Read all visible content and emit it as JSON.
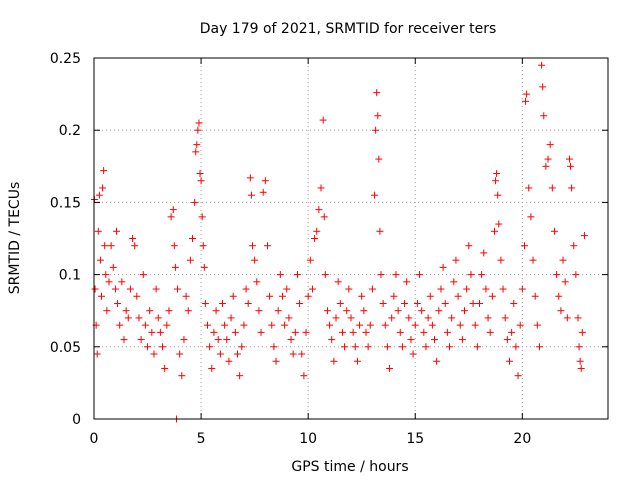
{
  "chart_data": {
    "type": "scatter",
    "title": "Day 179 of 2021, SRMTID for receiver ters",
    "xlabel": "GPS time / hours",
    "ylabel": "SRMTID / TECUs",
    "xlim": [
      0,
      24
    ],
    "ylim": [
      0,
      0.25
    ],
    "xticks": [
      0,
      5,
      10,
      15,
      20
    ],
    "xtick_labels": [
      "0",
      "5",
      "10",
      "15",
      "20"
    ],
    "yticks": [
      0,
      0.05,
      0.1,
      0.15,
      0.2,
      0.25
    ],
    "ytick_labels": [
      "0",
      "0.05",
      "0.1",
      "0.15",
      "0.2",
      "0.25"
    ],
    "grid": true,
    "legend": "none",
    "marker": "plus",
    "color": "#ff0000",
    "series": [
      {
        "points": [
          [
            0.02,
            0.152
          ],
          [
            0.05,
            0.09
          ],
          [
            0.1,
            0.065
          ],
          [
            0.15,
            0.045
          ],
          [
            0.2,
            0.13
          ],
          [
            0.25,
            0.155
          ],
          [
            0.3,
            0.11
          ],
          [
            0.35,
            0.085
          ],
          [
            0.4,
            0.16
          ],
          [
            0.45,
            0.172
          ],
          [
            0.5,
            0.12
          ],
          [
            0.55,
            0.1
          ],
          [
            0.6,
            0.075
          ],
          [
            0.7,
            0.095
          ],
          [
            0.8,
            0.12
          ],
          [
            0.9,
            0.105
          ],
          [
            1.0,
            0.09
          ],
          [
            1.05,
            0.13
          ],
          [
            1.1,
            0.08
          ],
          [
            1.2,
            0.065
          ],
          [
            1.3,
            0.095
          ],
          [
            1.4,
            0.055
          ],
          [
            1.5,
            0.075
          ],
          [
            1.6,
            0.07
          ],
          [
            1.7,
            0.09
          ],
          [
            1.8,
            0.125
          ],
          [
            1.9,
            0.12
          ],
          [
            2.0,
            0.085
          ],
          [
            2.1,
            0.07
          ],
          [
            2.2,
            0.055
          ],
          [
            2.3,
            0.1
          ],
          [
            2.4,
            0.065
          ],
          [
            2.5,
            0.05
          ],
          [
            2.6,
            0.075
          ],
          [
            2.7,
            0.06
          ],
          [
            2.8,
            0.045
          ],
          [
            2.9,
            0.09
          ],
          [
            3.0,
            0.07
          ],
          [
            3.1,
            0.06
          ],
          [
            3.2,
            0.05
          ],
          [
            3.3,
            0.035
          ],
          [
            3.4,
            0.065
          ],
          [
            3.5,
            0.075
          ],
          [
            3.6,
            0.14
          ],
          [
            3.7,
            0.145
          ],
          [
            3.75,
            0.12
          ],
          [
            3.8,
            0.105
          ],
          [
            3.85,
            0.0
          ],
          [
            3.9,
            0.09
          ],
          [
            4.0,
            0.045
          ],
          [
            4.1,
            0.03
          ],
          [
            4.2,
            0.055
          ],
          [
            4.3,
            0.085
          ],
          [
            4.4,
            0.075
          ],
          [
            4.5,
            0.11
          ],
          [
            4.6,
            0.125
          ],
          [
            4.7,
            0.15
          ],
          [
            4.75,
            0.185
          ],
          [
            4.8,
            0.19
          ],
          [
            4.85,
            0.2
          ],
          [
            4.9,
            0.205
          ],
          [
            4.95,
            0.17
          ],
          [
            5.0,
            0.165
          ],
          [
            5.05,
            0.14
          ],
          [
            5.1,
            0.12
          ],
          [
            5.15,
            0.105
          ],
          [
            5.2,
            0.08
          ],
          [
            5.3,
            0.065
          ],
          [
            5.4,
            0.05
          ],
          [
            5.5,
            0.035
          ],
          [
            5.6,
            0.06
          ],
          [
            5.7,
            0.075
          ],
          [
            5.8,
            0.055
          ],
          [
            5.9,
            0.045
          ],
          [
            6.0,
            0.08
          ],
          [
            6.1,
            0.065
          ],
          [
            6.2,
            0.055
          ],
          [
            6.3,
            0.04
          ],
          [
            6.4,
            0.07
          ],
          [
            6.5,
            0.085
          ],
          [
            6.6,
            0.06
          ],
          [
            6.7,
            0.045
          ],
          [
            6.8,
            0.03
          ],
          [
            6.9,
            0.05
          ],
          [
            7.0,
            0.065
          ],
          [
            7.1,
            0.09
          ],
          [
            7.2,
            0.08
          ],
          [
            7.3,
            0.167
          ],
          [
            7.35,
            0.155
          ],
          [
            7.4,
            0.12
          ],
          [
            7.5,
            0.11
          ],
          [
            7.6,
            0.095
          ],
          [
            7.7,
            0.075
          ],
          [
            7.8,
            0.06
          ],
          [
            7.9,
            0.157
          ],
          [
            8.0,
            0.165
          ],
          [
            8.1,
            0.12
          ],
          [
            8.2,
            0.085
          ],
          [
            8.3,
            0.065
          ],
          [
            8.4,
            0.05
          ],
          [
            8.5,
            0.04
          ],
          [
            8.6,
            0.075
          ],
          [
            8.7,
            0.1
          ],
          [
            8.8,
            0.085
          ],
          [
            8.9,
            0.065
          ],
          [
            9.0,
            0.09
          ],
          [
            9.1,
            0.07
          ],
          [
            9.2,
            0.055
          ],
          [
            9.3,
            0.045
          ],
          [
            9.4,
            0.06
          ],
          [
            9.5,
            0.1
          ],
          [
            9.6,
            0.08
          ],
          [
            9.7,
            0.045
          ],
          [
            9.8,
            0.03
          ],
          [
            9.9,
            0.06
          ],
          [
            10.0,
            0.085
          ],
          [
            10.1,
            0.11
          ],
          [
            10.2,
            0.09
          ],
          [
            10.3,
            0.125
          ],
          [
            10.4,
            0.13
          ],
          [
            10.5,
            0.145
          ],
          [
            10.6,
            0.16
          ],
          [
            10.7,
            0.207
          ],
          [
            10.75,
            0.14
          ],
          [
            10.8,
            0.1
          ],
          [
            10.9,
            0.075
          ],
          [
            11.0,
            0.065
          ],
          [
            11.1,
            0.055
          ],
          [
            11.2,
            0.04
          ],
          [
            11.3,
            0.07
          ],
          [
            11.4,
            0.095
          ],
          [
            11.5,
            0.08
          ],
          [
            11.6,
            0.06
          ],
          [
            11.7,
            0.05
          ],
          [
            11.8,
            0.075
          ],
          [
            11.9,
            0.09
          ],
          [
            12.0,
            0.07
          ],
          [
            12.1,
            0.06
          ],
          [
            12.2,
            0.05
          ],
          [
            12.3,
            0.04
          ],
          [
            12.4,
            0.065
          ],
          [
            12.5,
            0.085
          ],
          [
            12.6,
            0.075
          ],
          [
            12.7,
            0.06
          ],
          [
            12.8,
            0.05
          ],
          [
            12.9,
            0.065
          ],
          [
            13.0,
            0.09
          ],
          [
            13.1,
            0.155
          ],
          [
            13.15,
            0.2
          ],
          [
            13.2,
            0.226
          ],
          [
            13.25,
            0.21
          ],
          [
            13.3,
            0.18
          ],
          [
            13.35,
            0.13
          ],
          [
            13.4,
            0.1
          ],
          [
            13.5,
            0.08
          ],
          [
            13.6,
            0.065
          ],
          [
            13.7,
            0.05
          ],
          [
            13.8,
            0.035
          ],
          [
            13.9,
            0.07
          ],
          [
            14.0,
            0.085
          ],
          [
            14.1,
            0.1
          ],
          [
            14.2,
            0.075
          ],
          [
            14.3,
            0.06
          ],
          [
            14.4,
            0.05
          ],
          [
            14.5,
            0.08
          ],
          [
            14.6,
            0.095
          ],
          [
            14.7,
            0.07
          ],
          [
            14.8,
            0.055
          ],
          [
            14.9,
            0.045
          ],
          [
            15.0,
            0.065
          ],
          [
            15.1,
            0.08
          ],
          [
            15.2,
            0.1
          ],
          [
            15.3,
            0.075
          ],
          [
            15.4,
            0.06
          ],
          [
            15.5,
            0.05
          ],
          [
            15.6,
            0.07
          ],
          [
            15.7,
            0.085
          ],
          [
            15.8,
            0.065
          ],
          [
            15.9,
            0.055
          ],
          [
            16.0,
            0.04
          ],
          [
            16.1,
            0.075
          ],
          [
            16.2,
            0.09
          ],
          [
            16.3,
            0.105
          ],
          [
            16.4,
            0.08
          ],
          [
            16.5,
            0.06
          ],
          [
            16.6,
            0.05
          ],
          [
            16.7,
            0.07
          ],
          [
            16.8,
            0.095
          ],
          [
            16.9,
            0.11
          ],
          [
            17.0,
            0.085
          ],
          [
            17.1,
            0.065
          ],
          [
            17.2,
            0.055
          ],
          [
            17.3,
            0.075
          ],
          [
            17.4,
            0.09
          ],
          [
            17.5,
            0.12
          ],
          [
            17.6,
            0.1
          ],
          [
            17.7,
            0.08
          ],
          [
            17.8,
            0.065
          ],
          [
            17.9,
            0.05
          ],
          [
            18.0,
            0.08
          ],
          [
            18.1,
            0.1
          ],
          [
            18.2,
            0.115
          ],
          [
            18.3,
            0.09
          ],
          [
            18.4,
            0.07
          ],
          [
            18.5,
            0.06
          ],
          [
            18.6,
            0.085
          ],
          [
            18.7,
            0.13
          ],
          [
            18.75,
            0.165
          ],
          [
            18.8,
            0.17
          ],
          [
            18.85,
            0.155
          ],
          [
            18.9,
            0.135
          ],
          [
            19.0,
            0.11
          ],
          [
            19.1,
            0.09
          ],
          [
            19.2,
            0.07
          ],
          [
            19.3,
            0.055
          ],
          [
            19.4,
            0.04
          ],
          [
            19.5,
            0.06
          ],
          [
            19.6,
            0.08
          ],
          [
            19.7,
            0.05
          ],
          [
            19.8,
            0.03
          ],
          [
            19.9,
            0.065
          ],
          [
            20.0,
            0.09
          ],
          [
            20.1,
            0.12
          ],
          [
            20.15,
            0.22
          ],
          [
            20.2,
            0.225
          ],
          [
            20.3,
            0.16
          ],
          [
            20.4,
            0.14
          ],
          [
            20.5,
            0.11
          ],
          [
            20.6,
            0.085
          ],
          [
            20.7,
            0.065
          ],
          [
            20.8,
            0.05
          ],
          [
            20.9,
            0.245
          ],
          [
            20.95,
            0.23
          ],
          [
            21.0,
            0.21
          ],
          [
            21.1,
            0.175
          ],
          [
            21.2,
            0.18
          ],
          [
            21.3,
            0.19
          ],
          [
            21.4,
            0.16
          ],
          [
            21.5,
            0.13
          ],
          [
            21.6,
            0.1
          ],
          [
            21.7,
            0.085
          ],
          [
            21.8,
            0.075
          ],
          [
            21.9,
            0.11
          ],
          [
            22.0,
            0.095
          ],
          [
            22.1,
            0.07
          ],
          [
            22.2,
            0.18
          ],
          [
            22.25,
            0.175
          ],
          [
            22.3,
            0.16
          ],
          [
            22.4,
            0.12
          ],
          [
            22.5,
            0.1
          ],
          [
            22.6,
            0.07
          ],
          [
            22.65,
            0.05
          ],
          [
            22.7,
            0.04
          ],
          [
            22.75,
            0.035
          ],
          [
            22.8,
            0.06
          ],
          [
            22.9,
            0.127
          ]
        ]
      }
    ]
  }
}
